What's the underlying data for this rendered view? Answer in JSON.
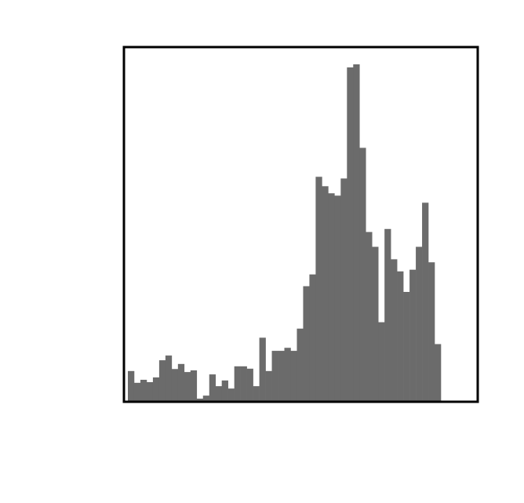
{
  "chart_data": {
    "type": "bar",
    "title": "",
    "xlabel": "",
    "ylabel": "",
    "ylim": [
      0,
      100
    ],
    "grid": false,
    "legend": "none",
    "colors": {
      "bar": "#6b6b6b",
      "frame": "#000000",
      "background": "#ffffff"
    },
    "values": [
      8.9,
      5.4,
      6.3,
      5.6,
      7.0,
      12.1,
      13.5,
      9.5,
      11.0,
      8.6,
      9.1,
      0.7,
      1.6,
      7.9,
      4.4,
      6.1,
      3.7,
      10.3,
      10.3,
      9.6,
      4.4,
      18.8,
      8.9,
      14.9,
      14.9,
      15.8,
      14.9,
      21.5,
      34.1,
      37.6,
      66.6,
      63.8,
      61.7,
      61.0,
      66.1,
      99.1,
      100.0,
      75.2,
      50.2,
      45.8,
      23.4,
      51.1,
      42.1,
      38.5,
      32.4,
      39.0,
      45.8,
      58.9,
      41.2,
      16.9
    ]
  }
}
